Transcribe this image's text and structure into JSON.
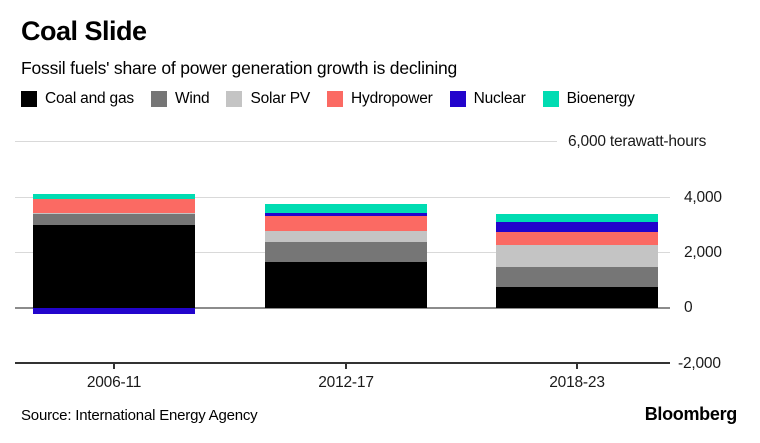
{
  "header": {
    "title": "Coal Slide",
    "subtitle": "Fossil fuels' share of power generation growth is declining"
  },
  "chart_data": {
    "type": "bar",
    "stacked": true,
    "categories": [
      "2006-11",
      "2012-17",
      "2018-23"
    ],
    "series": [
      {
        "name": "Coal and gas",
        "color": "#000000",
        "values": [
          3000,
          1650,
          750
        ]
      },
      {
        "name": "Wind",
        "color": "#767676",
        "values": [
          400,
          710,
          720
        ]
      },
      {
        "name": "Solar PV",
        "color": "#c4c4c4",
        "values": [
          40,
          410,
          780
        ]
      },
      {
        "name": "Hydropower",
        "color": "#fb6a63",
        "values": [
          480,
          550,
          500
        ]
      },
      {
        "name": "Nuclear",
        "color": "#2204cc",
        "values": [
          -230,
          110,
          360
        ]
      },
      {
        "name": "Bioenergy",
        "color": "#00dcb2",
        "values": [
          200,
          320,
          280
        ]
      }
    ],
    "y_axis": {
      "ylim": [
        -2000,
        6000
      ],
      "ticks": [
        6000,
        4000,
        2000,
        0,
        -2000
      ],
      "tick_labels": [
        "6,000 terawatt-hours",
        "4,000",
        "2,000",
        "0",
        "-2,000"
      ],
      "unit": "terawatt-hours",
      "grid": true,
      "side": "right"
    },
    "legend_position": "top"
  },
  "footer": {
    "source": "Source: International Energy Agency",
    "brand": "Bloomberg"
  }
}
